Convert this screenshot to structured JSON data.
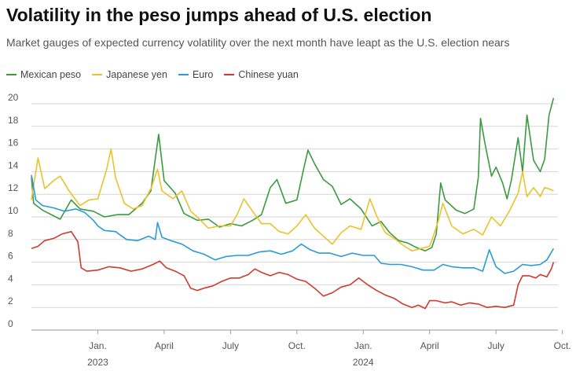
{
  "chart_data": {
    "type": "line",
    "title": "Volatility in the peso jumps ahead of U.S. election",
    "subtitle": "Market gauges of expected currency volatility over the next month have leapt as the U.S. election nears",
    "xlabel": "",
    "ylabel": "",
    "x_range_months": [
      0,
      23.8
    ],
    "x_start": "Oct. 2022",
    "ylim": [
      0,
      21
    ],
    "yticks": [
      "0",
      "2",
      "4",
      "6",
      "8",
      "10",
      "12",
      "14",
      "16",
      "18",
      "20"
    ],
    "xticks": [
      {
        "month": 3,
        "label": "Jan.",
        "year": "2023"
      },
      {
        "month": 6,
        "label": "April",
        "year": ""
      },
      {
        "month": 9,
        "label": "July",
        "year": ""
      },
      {
        "month": 12,
        "label": "Oct.",
        "year": ""
      },
      {
        "month": 15,
        "label": "Jan.",
        "year": "2024"
      },
      {
        "month": 18,
        "label": "April",
        "year": ""
      },
      {
        "month": 21,
        "label": "July",
        "year": ""
      },
      {
        "month": 24,
        "label": "Oct.",
        "year": ""
      }
    ],
    "grid": true,
    "legend_position": "top-left",
    "series": [
      {
        "name": "Mexican peso",
        "color": "#3b9a3f",
        "points": [
          [
            0,
            13.5
          ],
          [
            0.1,
            11.2
          ],
          [
            0.5,
            10.6
          ],
          [
            1.0,
            10.1
          ],
          [
            1.3,
            9.8
          ],
          [
            1.8,
            11.5
          ],
          [
            2.2,
            10.7
          ],
          [
            2.8,
            10.5
          ],
          [
            3.3,
            10.0
          ],
          [
            3.9,
            10.2
          ],
          [
            4.4,
            10.2
          ],
          [
            5.0,
            11.2
          ],
          [
            5.4,
            12.3
          ],
          [
            5.75,
            17.3
          ],
          [
            6.0,
            13.2
          ],
          [
            6.5,
            12.1
          ],
          [
            6.9,
            10.3
          ],
          [
            7.5,
            9.7
          ],
          [
            8.0,
            9.8
          ],
          [
            8.5,
            9.1
          ],
          [
            9.0,
            9.4
          ],
          [
            9.5,
            9.2
          ],
          [
            10.0,
            9.7
          ],
          [
            10.4,
            10.2
          ],
          [
            10.8,
            12.6
          ],
          [
            11.1,
            13.3
          ],
          [
            11.5,
            11.2
          ],
          [
            12.0,
            11.5
          ],
          [
            12.3,
            14.2
          ],
          [
            12.5,
            15.9
          ],
          [
            12.8,
            14.7
          ],
          [
            13.2,
            13.3
          ],
          [
            13.6,
            12.7
          ],
          [
            14.0,
            11.1
          ],
          [
            14.4,
            11.6
          ],
          [
            14.9,
            10.7
          ],
          [
            15.4,
            9.2
          ],
          [
            15.8,
            9.6
          ],
          [
            16.2,
            8.6
          ],
          [
            16.6,
            7.9
          ],
          [
            17.0,
            7.7
          ],
          [
            17.4,
            7.3
          ],
          [
            17.8,
            7.0
          ],
          [
            18.1,
            7.3
          ],
          [
            18.3,
            8.5
          ],
          [
            18.5,
            13.0
          ],
          [
            18.7,
            11.5
          ],
          [
            19.2,
            10.6
          ],
          [
            19.6,
            10.3
          ],
          [
            20.0,
            10.7
          ],
          [
            20.2,
            13.5
          ],
          [
            20.3,
            18.7
          ],
          [
            20.5,
            16.5
          ],
          [
            20.8,
            13.6
          ],
          [
            21.0,
            14.4
          ],
          [
            21.3,
            13.0
          ],
          [
            21.5,
            11.6
          ],
          [
            21.7,
            13.3
          ],
          [
            22.0,
            17.0
          ],
          [
            22.2,
            14.0
          ],
          [
            22.4,
            19.0
          ],
          [
            22.7,
            15.0
          ],
          [
            23.0,
            14.0
          ],
          [
            23.2,
            15.1
          ],
          [
            23.4,
            19.0
          ],
          [
            23.6,
            20.5
          ]
        ]
      },
      {
        "name": "Japanese yen",
        "color": "#e8c32b",
        "points": [
          [
            0,
            11.5
          ],
          [
            0.1,
            12.8
          ],
          [
            0.3,
            15.2
          ],
          [
            0.6,
            12.5
          ],
          [
            1.0,
            13.2
          ],
          [
            1.3,
            13.6
          ],
          [
            1.7,
            12.3
          ],
          [
            2.2,
            11.0
          ],
          [
            2.6,
            11.5
          ],
          [
            3.0,
            11.6
          ],
          [
            3.4,
            14.2
          ],
          [
            3.6,
            16.0
          ],
          [
            3.8,
            13.5
          ],
          [
            4.2,
            11.2
          ],
          [
            4.6,
            10.7
          ],
          [
            5.0,
            11.0
          ],
          [
            5.4,
            12.5
          ],
          [
            5.7,
            14.2
          ],
          [
            5.9,
            12.3
          ],
          [
            6.4,
            11.6
          ],
          [
            6.8,
            12.3
          ],
          [
            7.2,
            10.5
          ],
          [
            7.6,
            9.8
          ],
          [
            8.0,
            9.0
          ],
          [
            8.5,
            9.2
          ],
          [
            9.0,
            9.2
          ],
          [
            9.3,
            10.2
          ],
          [
            9.6,
            11.6
          ],
          [
            10.0,
            10.5
          ],
          [
            10.4,
            9.4
          ],
          [
            10.8,
            9.4
          ],
          [
            11.2,
            8.7
          ],
          [
            11.6,
            8.5
          ],
          [
            12.0,
            9.2
          ],
          [
            12.4,
            10.2
          ],
          [
            12.8,
            9.0
          ],
          [
            13.2,
            8.3
          ],
          [
            13.6,
            7.6
          ],
          [
            14.0,
            8.6
          ],
          [
            14.4,
            9.2
          ],
          [
            14.9,
            8.9
          ],
          [
            15.3,
            11.6
          ],
          [
            15.6,
            10.1
          ],
          [
            16.0,
            8.6
          ],
          [
            16.4,
            8.1
          ],
          [
            16.8,
            7.5
          ],
          [
            17.2,
            7.0
          ],
          [
            17.6,
            7.2
          ],
          [
            18.0,
            7.4
          ],
          [
            18.2,
            8.5
          ],
          [
            18.4,
            9.7
          ],
          [
            18.6,
            11.2
          ],
          [
            19.0,
            9.2
          ],
          [
            19.5,
            8.5
          ],
          [
            20.0,
            8.9
          ],
          [
            20.4,
            8.4
          ],
          [
            20.8,
            10.0
          ],
          [
            21.2,
            9.2
          ],
          [
            21.6,
            10.5
          ],
          [
            22.0,
            12.1
          ],
          [
            22.2,
            14.0
          ],
          [
            22.4,
            11.8
          ],
          [
            22.7,
            12.6
          ],
          [
            23.0,
            11.8
          ],
          [
            23.2,
            12.6
          ],
          [
            23.5,
            12.4
          ],
          [
            23.6,
            12.3
          ]
        ]
      },
      {
        "name": "Euro",
        "color": "#2a9bd4",
        "points": [
          [
            0,
            13.7
          ],
          [
            0.2,
            11.5
          ],
          [
            0.5,
            11.0
          ],
          [
            1.0,
            10.8
          ],
          [
            1.5,
            10.5
          ],
          [
            2.0,
            10.7
          ],
          [
            2.4,
            10.4
          ],
          [
            2.8,
            9.7
          ],
          [
            3.0,
            9.2
          ],
          [
            3.3,
            8.8
          ],
          [
            3.8,
            8.7
          ],
          [
            4.3,
            8.0
          ],
          [
            4.8,
            7.9
          ],
          [
            5.3,
            8.3
          ],
          [
            5.6,
            8.0
          ],
          [
            5.7,
            9.5
          ],
          [
            5.9,
            8.2
          ],
          [
            6.3,
            7.9
          ],
          [
            6.8,
            7.6
          ],
          [
            7.3,
            7.0
          ],
          [
            7.8,
            6.7
          ],
          [
            8.3,
            6.2
          ],
          [
            8.8,
            6.5
          ],
          [
            9.3,
            6.6
          ],
          [
            9.8,
            6.6
          ],
          [
            10.3,
            6.9
          ],
          [
            10.8,
            7.0
          ],
          [
            11.3,
            6.7
          ],
          [
            11.8,
            7.0
          ],
          [
            12.2,
            7.6
          ],
          [
            12.6,
            7.1
          ],
          [
            13.0,
            6.8
          ],
          [
            13.5,
            6.8
          ],
          [
            14.0,
            6.5
          ],
          [
            14.5,
            6.8
          ],
          [
            15.0,
            6.6
          ],
          [
            15.5,
            6.6
          ],
          [
            15.8,
            5.9
          ],
          [
            16.2,
            5.8
          ],
          [
            16.7,
            5.8
          ],
          [
            17.2,
            5.6
          ],
          [
            17.7,
            5.3
          ],
          [
            18.2,
            5.3
          ],
          [
            18.6,
            5.8
          ],
          [
            19.0,
            5.6
          ],
          [
            19.5,
            5.5
          ],
          [
            20.0,
            5.5
          ],
          [
            20.4,
            5.2
          ],
          [
            20.7,
            7.1
          ],
          [
            21.0,
            5.6
          ],
          [
            21.4,
            5.0
          ],
          [
            21.8,
            5.2
          ],
          [
            22.2,
            5.8
          ],
          [
            22.6,
            5.7
          ],
          [
            23.0,
            5.8
          ],
          [
            23.3,
            6.2
          ],
          [
            23.6,
            7.2
          ]
        ]
      },
      {
        "name": "Chinese yuan",
        "color": "#d03a2c",
        "points": [
          [
            0,
            7.2
          ],
          [
            0.3,
            7.4
          ],
          [
            0.6,
            7.9
          ],
          [
            1.0,
            8.1
          ],
          [
            1.4,
            8.5
          ],
          [
            1.8,
            8.7
          ],
          [
            2.1,
            7.8
          ],
          [
            2.25,
            5.5
          ],
          [
            2.5,
            5.2
          ],
          [
            3.0,
            5.3
          ],
          [
            3.5,
            5.6
          ],
          [
            4.0,
            5.5
          ],
          [
            4.5,
            5.2
          ],
          [
            5.0,
            5.4
          ],
          [
            5.5,
            5.8
          ],
          [
            5.8,
            6.1
          ],
          [
            6.1,
            5.5
          ],
          [
            6.5,
            5.2
          ],
          [
            6.9,
            4.8
          ],
          [
            7.2,
            3.7
          ],
          [
            7.5,
            3.5
          ],
          [
            7.8,
            3.7
          ],
          [
            8.2,
            3.9
          ],
          [
            8.6,
            4.3
          ],
          [
            9.0,
            4.6
          ],
          [
            9.4,
            4.6
          ],
          [
            9.8,
            4.9
          ],
          [
            10.1,
            5.4
          ],
          [
            10.4,
            5.1
          ],
          [
            10.8,
            4.8
          ],
          [
            11.2,
            5.1
          ],
          [
            11.6,
            4.9
          ],
          [
            12.0,
            4.5
          ],
          [
            12.4,
            4.3
          ],
          [
            12.8,
            3.7
          ],
          [
            13.2,
            3.0
          ],
          [
            13.6,
            3.3
          ],
          [
            14.0,
            3.8
          ],
          [
            14.4,
            4.0
          ],
          [
            14.8,
            4.6
          ],
          [
            15.2,
            4.0
          ],
          [
            15.6,
            3.5
          ],
          [
            16.0,
            3.1
          ],
          [
            16.4,
            2.8
          ],
          [
            16.8,
            2.3
          ],
          [
            17.2,
            2.0
          ],
          [
            17.5,
            2.2
          ],
          [
            17.8,
            1.9
          ],
          [
            18.0,
            2.6
          ],
          [
            18.3,
            2.6
          ],
          [
            18.7,
            2.4
          ],
          [
            19.0,
            2.5
          ],
          [
            19.4,
            2.2
          ],
          [
            19.8,
            2.4
          ],
          [
            20.2,
            2.3
          ],
          [
            20.6,
            2.0
          ],
          [
            21.0,
            2.1
          ],
          [
            21.4,
            2.0
          ],
          [
            21.8,
            2.2
          ],
          [
            22.0,
            4.0
          ],
          [
            22.2,
            4.8
          ],
          [
            22.5,
            4.8
          ],
          [
            22.8,
            4.6
          ],
          [
            23.0,
            4.9
          ],
          [
            23.3,
            4.7
          ],
          [
            23.5,
            5.4
          ],
          [
            23.6,
            6.0
          ]
        ]
      }
    ]
  }
}
